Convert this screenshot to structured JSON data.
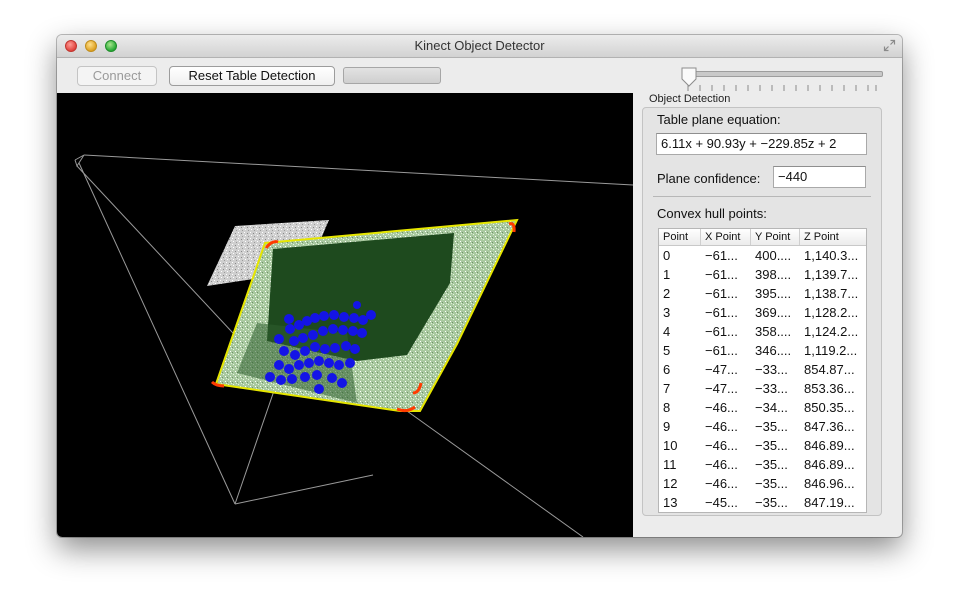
{
  "window": {
    "title": "Kinect Object Detector"
  },
  "toolbar": {
    "connect_label": "Connect",
    "reset_label": "Reset Table Detection"
  },
  "panel": {
    "caption": "Object Detection",
    "plane_equation_label": "Table plane equation:",
    "plane_equation_value": "6.11x + 90.93y + −229.85z + 2",
    "confidence_label": "Plane confidence:",
    "confidence_value": "−440",
    "hull_label": "Convex hull points:",
    "table": {
      "columns": [
        "Point",
        "X Point",
        "Y Point",
        "Z Point"
      ],
      "rows": [
        [
          "0",
          "−61...",
          "400....",
          "1,140.3..."
        ],
        [
          "1",
          "−61...",
          "398....",
          "1,139.7..."
        ],
        [
          "2",
          "−61...",
          "395....",
          "1,138.7..."
        ],
        [
          "3",
          "−61...",
          "369....",
          "1,128.2..."
        ],
        [
          "4",
          "−61...",
          "358....",
          "1,124.2..."
        ],
        [
          "5",
          "−61...",
          "346....",
          "1,119.2..."
        ],
        [
          "6",
          "−47...",
          "−33...",
          "854.87..."
        ],
        [
          "7",
          "−47...",
          "−33...",
          "853.36..."
        ],
        [
          "8",
          "−46...",
          "−34...",
          "850.35..."
        ],
        [
          "9",
          "−46...",
          "−35...",
          "847.36..."
        ],
        [
          "10",
          "−46...",
          "−35...",
          "846.89..."
        ],
        [
          "11",
          "−46...",
          "−35...",
          "846.89..."
        ],
        [
          "12",
          "−46...",
          "−35...",
          "846.96..."
        ],
        [
          "13",
          "−45...",
          "−35...",
          "847.19..."
        ]
      ]
    }
  },
  "colors": {
    "viewport_bg": "#000000",
    "table_surface": "#1e4a1e",
    "hull_fill": "#c8f0c0",
    "hull_outline": "#ffff00",
    "hull_corner": "#ff3b00",
    "object_points": "#1414e6"
  }
}
